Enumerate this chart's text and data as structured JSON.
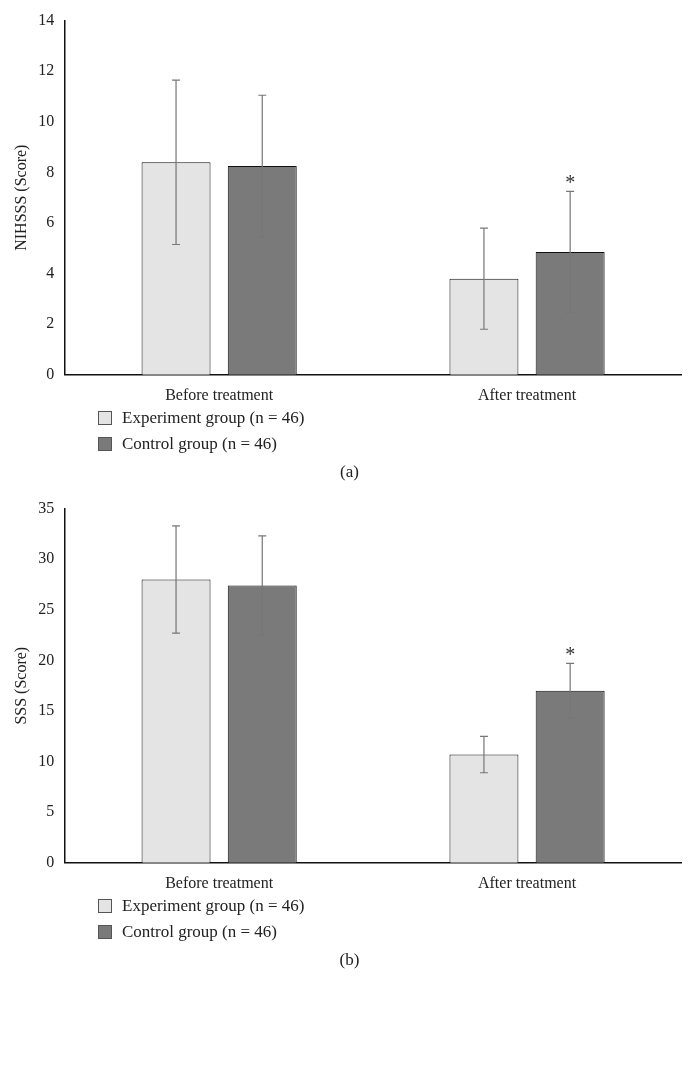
{
  "chart_data": [
    {
      "type": "bar",
      "ylabel": "NIHSSS (Score)",
      "categories": [
        "Before treatment",
        "After treatment"
      ],
      "ylim": [
        0,
        14
      ],
      "yticks": [
        0,
        2,
        4,
        6,
        8,
        10,
        12,
        14
      ],
      "grid": false,
      "legend": "bottom left",
      "series": [
        {
          "name": "Experiment group (n = 46)",
          "color": "#e4e4e4",
          "values": [
            8.4,
            3.8
          ],
          "errors": [
            3.25,
            2.0
          ]
        },
        {
          "name": "Control group (n = 46)",
          "color": "#7a7a7a",
          "values": [
            8.25,
            4.85
          ],
          "errors": [
            2.8,
            2.4
          ],
          "value_labels": [
            null,
            "*"
          ]
        }
      ],
      "annotations": [
        "(a)"
      ]
    },
    {
      "type": "bar",
      "ylabel": "SSS (Score)",
      "categories": [
        "Before treatment",
        "After treatment"
      ],
      "ylim": [
        0,
        35
      ],
      "yticks": [
        0,
        5,
        10,
        15,
        20,
        25,
        30,
        35
      ],
      "grid": false,
      "legend": "bottom left",
      "series": [
        {
          "name": "Experiment group (n = 46)",
          "color": "#e4e4e4",
          "values": [
            28,
            10.7
          ],
          "errors": [
            5.3,
            1.8
          ]
        },
        {
          "name": "Control group (n = 46)",
          "color": "#7a7a7a",
          "values": [
            27.4,
            17
          ],
          "errors": [
            4.9,
            2.7
          ],
          "value_labels": [
            null,
            "*"
          ]
        }
      ],
      "annotations": [
        "(b)"
      ]
    }
  ]
}
